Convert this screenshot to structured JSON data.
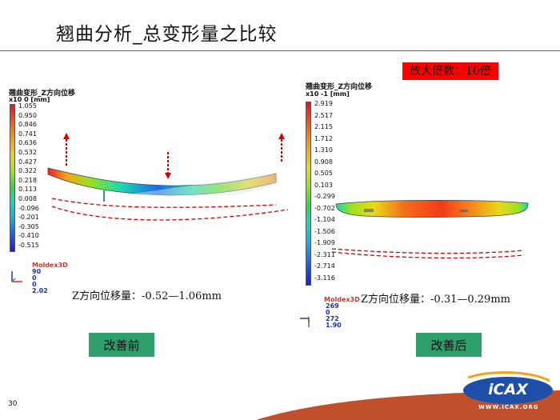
{
  "title": "翘曲分析_总变形量之比较",
  "badge": "放大倍数：10倍",
  "page_number": "30",
  "colors": {
    "accent_red": "#ff0000",
    "label_green": "#2e9e6a",
    "rule": "#c0392b"
  },
  "left_panel": {
    "legend_title": "翘曲变形_Z方向位移",
    "unit_exponent": "x10  0  [mm]",
    "ticks": [
      "1.055",
      "0.950",
      "0.846",
      "0.741",
      "0.636",
      "0.532",
      "0.427",
      "0.322",
      "0.218",
      "0.113",
      "0.008",
      "-0.096",
      "-0.201",
      "-0.305",
      "-0.410",
      "-0.515"
    ],
    "brand": "Moldex3D",
    "axis_values": [
      "90",
      "0",
      "0",
      "2.02"
    ],
    "range_text": "Z方向位移量：-0.52—1.06mm",
    "state_label": "改善前"
  },
  "right_panel": {
    "legend_title": "翘曲变形_Z方向位移",
    "unit_exponent": "x10  -1  [mm]",
    "ticks": [
      "2.919",
      "2.517",
      "2.115",
      "1.712",
      "1.310",
      "0.908",
      "0.505",
      "0.103",
      "-0.299",
      "-0.702",
      "-1.104",
      "-1.506",
      "-1.909",
      "-2.311",
      "-2.714",
      "-3.116"
    ],
    "brand": "Moldex3D",
    "axis_values": [
      "269",
      "0",
      "272",
      "1.90"
    ],
    "range_text": "Z方向位移量：-0.31—0.29mm",
    "state_label": "改善后"
  },
  "logo": {
    "text": "WWW.ICAX.ORG"
  }
}
